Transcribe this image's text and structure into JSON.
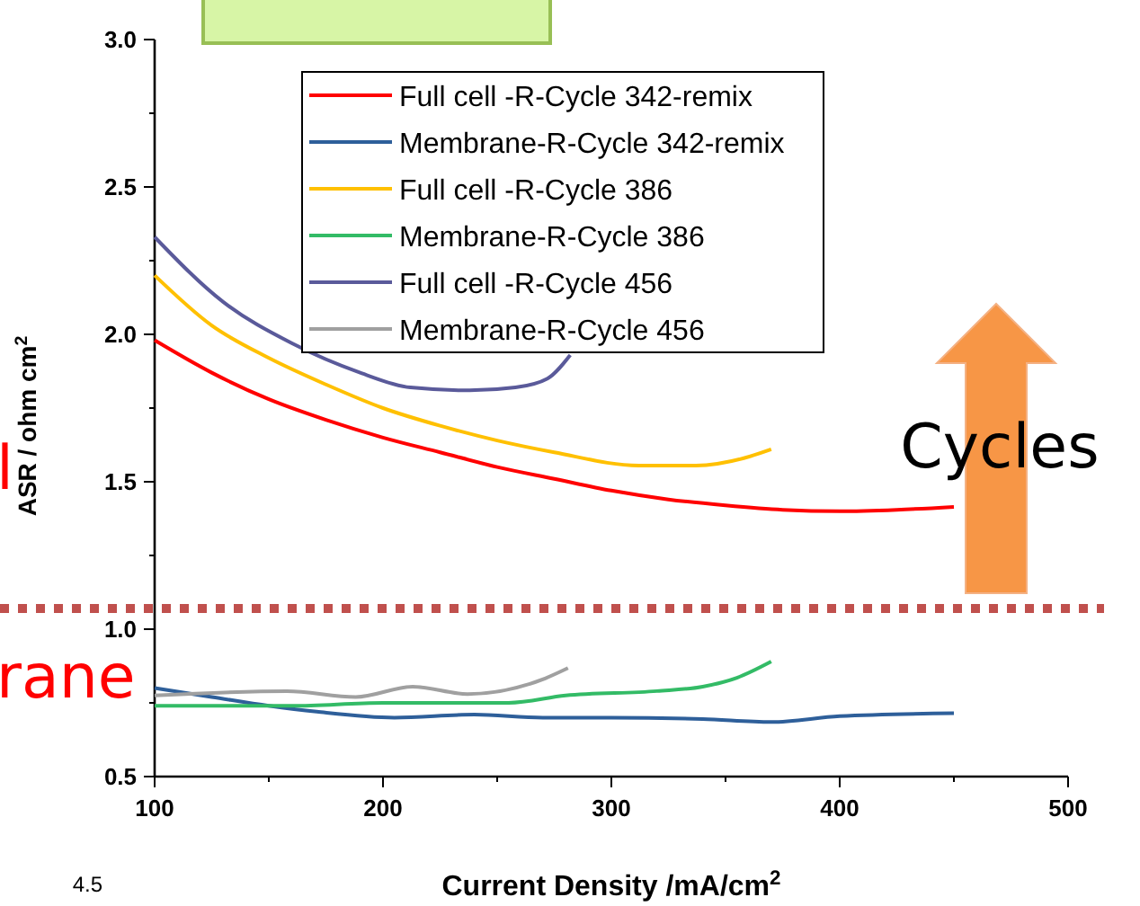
{
  "chart_data": {
    "type": "line",
    "xlabel": "Current Density /mA/cm$^{2}$",
    "ylabel": "ASR / ohm cm$^{2}$",
    "xlim": [
      100,
      500
    ],
    "xticks": [
      100,
      {
        "value": 150,
        "label": null
      },
      200,
      {
        "value": 250,
        "label": null
      },
      300,
      {
        "value": 350,
        "label": null
      },
      400,
      {
        "value": 450,
        "label": null
      },
      500
    ],
    "ylim": [
      0.5,
      3.0
    ],
    "yticks": [
      0.5,
      {
        "value": 0.75,
        "label": null
      },
      {
        "value": 1,
        "label": "1.0"
      },
      {
        "value": 1.25,
        "label": null
      },
      1.5,
      {
        "value": 1.75,
        "label": null
      },
      {
        "value": 2,
        "label": "2.0"
      },
      {
        "value": 2.25,
        "label": null
      },
      2.5,
      {
        "value": 2.75,
        "label": null
      },
      {
        "value": 3,
        "label": "3.0"
      }
    ],
    "legend": "top",
    "grid": false,
    "marker": "none",
    "line_style": "solid",
    "series": [
      {
        "name": "Full cell -R-Cycle 342-remix",
        "color": "#ff0000",
        "x": [
          100,
          125,
          150,
          175,
          200,
          225,
          250,
          275,
          300,
          325,
          350,
          375,
          400,
          425,
          450
        ],
        "values": [
          1.98,
          1.87,
          1.78,
          1.71,
          1.65,
          1.6,
          1.55,
          1.51,
          1.47,
          1.44,
          1.42,
          1.405,
          1.4,
          1.405,
          1.415
        ]
      },
      {
        "name": "Membrane-R-Cycle 342-remix",
        "color": "#2e5f9a",
        "x": [
          100,
          125,
          150,
          171,
          205,
          240,
          270,
          300,
          340,
          370,
          400,
          450
        ],
        "values": [
          0.8,
          0.77,
          0.74,
          0.72,
          0.7,
          0.71,
          0.7,
          0.7,
          0.695,
          0.685,
          0.705,
          0.715
        ]
      },
      {
        "name": "Full cell -R-Cycle 386",
        "color": "#ffc000",
        "x": [
          100,
          125,
          150,
          175,
          200,
          225,
          250,
          275,
          312,
          337,
          358,
          370
        ],
        "values": [
          2.2,
          2.03,
          1.92,
          1.83,
          1.75,
          1.69,
          1.64,
          1.6,
          1.555,
          1.555,
          1.58,
          1.61
        ]
      },
      {
        "name": "Membrane-R-Cycle 386",
        "color": "#33bb66",
        "x": [
          100,
          160,
          200,
          255,
          280,
          320,
          340,
          355,
          370
        ],
        "values": [
          0.74,
          0.74,
          0.75,
          0.75,
          0.775,
          0.79,
          0.805,
          0.835,
          0.89
        ]
      },
      {
        "name": "Full cell -R-Cycle 456",
        "color": "#5a5a9a",
        "x": [
          100,
          130,
          160,
          190,
          212,
          238,
          258,
          272,
          282
        ],
        "values": [
          2.33,
          2.11,
          1.97,
          1.87,
          1.82,
          1.81,
          1.82,
          1.85,
          1.93
        ]
      },
      {
        "name": "Membrane-R-Cycle 456",
        "color": "#a0a0a0",
        "x": [
          100,
          158,
          188,
          213,
          237,
          271,
          281
        ],
        "values": [
          0.775,
          0.79,
          0.77,
          0.805,
          0.78,
          0.833,
          0.868
        ]
      }
    ],
    "ref_lines": [
      {
        "axis": "y",
        "value": 1.07,
        "color": "#c0504d",
        "line_style": "dotted"
      }
    ],
    "annotations": [
      "Cycles",
      "l",
      "rane",
      "4.5"
    ]
  }
}
